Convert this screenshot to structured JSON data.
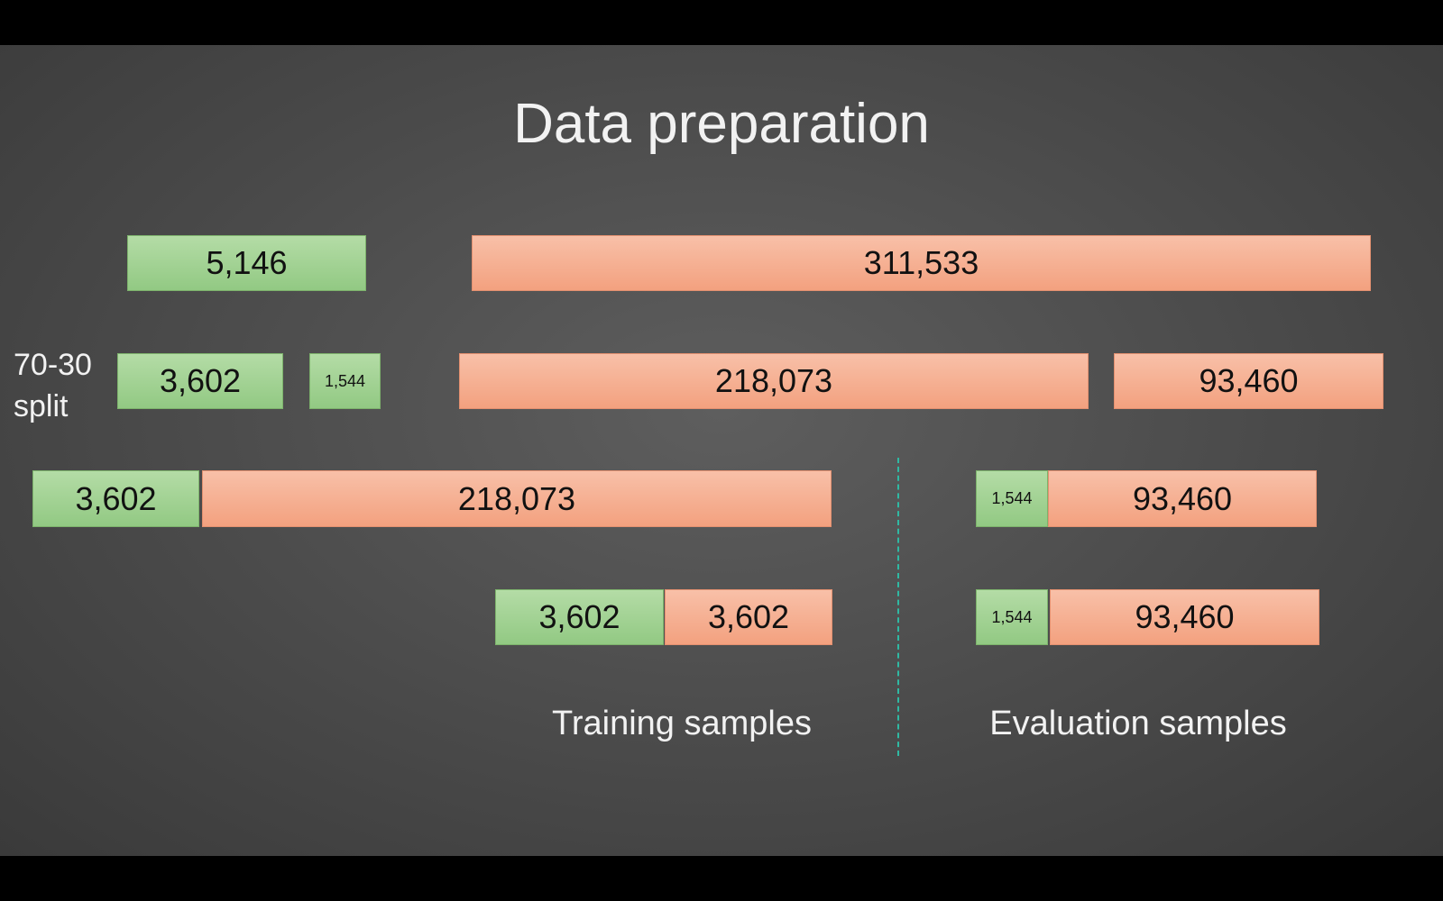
{
  "title": "Data preparation",
  "split_label": [
    "70-30",
    "split"
  ],
  "rows": [
    [
      "5,146",
      "311,533"
    ],
    [
      "3,602",
      "1,544",
      "218,073",
      "93,460"
    ],
    [
      "3,602",
      "218,073",
      "1,544",
      "93,460"
    ],
    [
      "3,602",
      "3,602",
      "1,544",
      "93,460"
    ]
  ],
  "captions": {
    "training": "Training samples",
    "evaluation": "Evaluation samples"
  }
}
